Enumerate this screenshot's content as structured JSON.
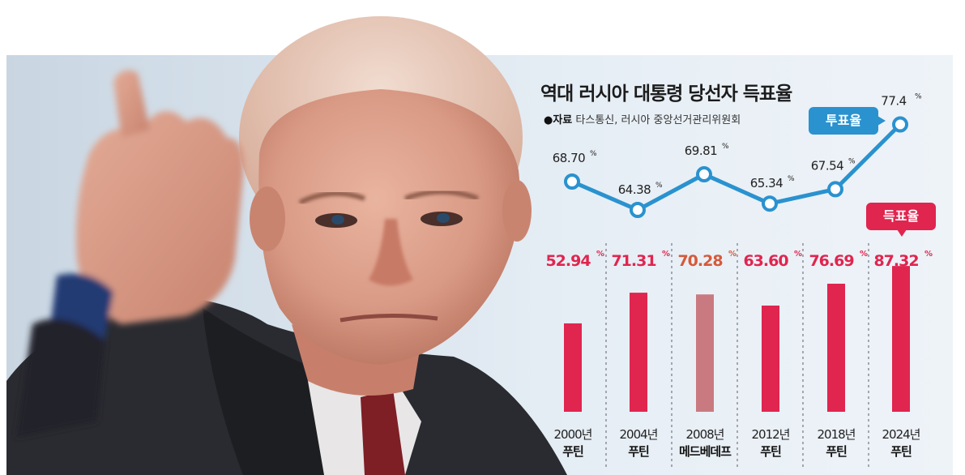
{
  "chart_data": {
    "type": "bar",
    "title": "역대 러시아 대통령 당선자 득표율",
    "source_label": "●자료",
    "source": "타스통신, 러시아 중앙선거관리위원회",
    "categories": [
      "2000년",
      "2004년",
      "2008년",
      "2012년",
      "2018년",
      "2024년"
    ],
    "winners": [
      "푸틴",
      "푸틴",
      "메드베데프",
      "푸틴",
      "푸틴",
      "푸틴"
    ],
    "unit": "%",
    "series": [
      {
        "name": "득표율",
        "type": "bar",
        "values": [
          52.94,
          71.31,
          70.28,
          63.6,
          76.69,
          87.32
        ],
        "labels": [
          "52.94",
          "71.31",
          "70.28",
          "63.60",
          "76.69",
          "87.32"
        ]
      },
      {
        "name": "투표율",
        "type": "line",
        "values": [
          68.7,
          64.38,
          69.81,
          65.34,
          67.54,
          77.4
        ],
        "labels": [
          "68.70",
          "64.38",
          "69.81",
          "65.34",
          "67.54",
          "77.4"
        ]
      }
    ],
    "colors": {
      "bar": "#e0254f",
      "bar_highlight": "#c97a80",
      "line": "#2a92cf",
      "label_vote": "#e0254f",
      "label_vote_highlight": "#d55a3a"
    }
  }
}
